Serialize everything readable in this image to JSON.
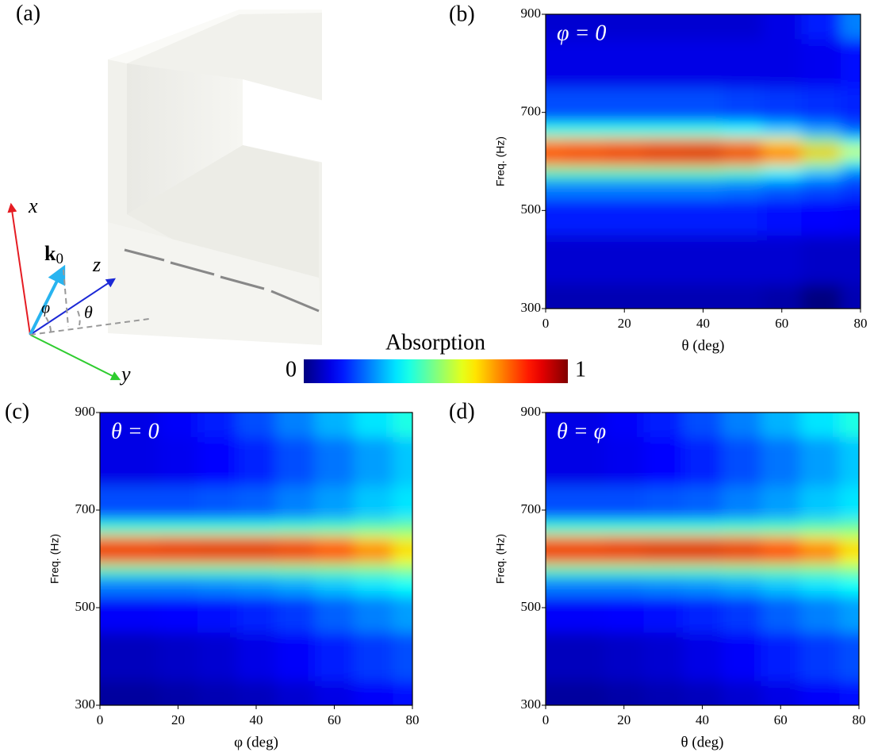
{
  "illustration": {
    "label": "(a)",
    "axis_x": "x",
    "axis_y": "y",
    "axis_z": "z",
    "wave_vector": {
      "main": "k",
      "sub": "0"
    },
    "angle_phi": "φ",
    "angle_theta": "θ"
  },
  "colorbar": {
    "title": "Absorption",
    "lim": [
      0,
      1
    ],
    "ticks": [
      0,
      1
    ]
  },
  "chart_data": [
    {
      "type": "heatmap",
      "panel_label": "(b)",
      "annotation": "φ = 0",
      "x_label": "θ (deg)",
      "y_label": "Freq. (Hz)",
      "x": [
        0,
        10,
        20,
        30,
        40,
        50,
        60,
        70,
        80
      ],
      "y": [
        300,
        400,
        500,
        550,
        580,
        600,
        620,
        640,
        660,
        700,
        800,
        900
      ],
      "z": [
        [
          0.05,
          0.05,
          0.05,
          0.05,
          0.05,
          0.05,
          0.04,
          0.0,
          0.05
        ],
        [
          0.08,
          0.08,
          0.08,
          0.08,
          0.08,
          0.08,
          0.08,
          0.07,
          0.07
        ],
        [
          0.15,
          0.15,
          0.15,
          0.15,
          0.15,
          0.15,
          0.14,
          0.13,
          0.12
        ],
        [
          0.25,
          0.25,
          0.25,
          0.25,
          0.25,
          0.24,
          0.22,
          0.2,
          0.18
        ],
        [
          0.45,
          0.45,
          0.45,
          0.45,
          0.45,
          0.43,
          0.38,
          0.32,
          0.25
        ],
        [
          0.75,
          0.76,
          0.77,
          0.78,
          0.78,
          0.75,
          0.68,
          0.55,
          0.4
        ],
        [
          0.88,
          0.89,
          0.9,
          0.92,
          0.93,
          0.9,
          0.82,
          0.7,
          0.6
        ],
        [
          0.72,
          0.73,
          0.74,
          0.75,
          0.75,
          0.72,
          0.64,
          0.52,
          0.4
        ],
        [
          0.4,
          0.4,
          0.4,
          0.4,
          0.4,
          0.38,
          0.33,
          0.28,
          0.22
        ],
        [
          0.2,
          0.2,
          0.2,
          0.2,
          0.2,
          0.19,
          0.18,
          0.17,
          0.16
        ],
        [
          0.1,
          0.1,
          0.1,
          0.1,
          0.1,
          0.1,
          0.1,
          0.11,
          0.14
        ],
        [
          0.08,
          0.08,
          0.08,
          0.08,
          0.08,
          0.08,
          0.1,
          0.15,
          0.25
        ]
      ],
      "xlim": [
        0,
        80
      ],
      "ylim": [
        300,
        900
      ],
      "xticks": [
        0,
        20,
        40,
        60,
        80
      ],
      "yticks": [
        300,
        500,
        700,
        900
      ]
    },
    {
      "type": "heatmap",
      "panel_label": "(c)",
      "annotation": "θ = 0",
      "x_label": "φ (deg)",
      "y_label": "Freq. (Hz)",
      "x": [
        0,
        10,
        20,
        30,
        40,
        50,
        60,
        70,
        80
      ],
      "y": [
        300,
        400,
        500,
        550,
        580,
        600,
        620,
        640,
        660,
        700,
        800,
        900
      ],
      "z": [
        [
          0.03,
          0.03,
          0.04,
          0.05,
          0.06,
          0.08,
          0.1,
          0.12,
          0.14
        ],
        [
          0.06,
          0.06,
          0.07,
          0.08,
          0.1,
          0.12,
          0.15,
          0.18,
          0.2
        ],
        [
          0.12,
          0.12,
          0.13,
          0.14,
          0.16,
          0.18,
          0.22,
          0.25,
          0.28
        ],
        [
          0.25,
          0.25,
          0.25,
          0.26,
          0.27,
          0.29,
          0.32,
          0.35,
          0.38
        ],
        [
          0.45,
          0.45,
          0.45,
          0.45,
          0.45,
          0.46,
          0.47,
          0.48,
          0.5
        ],
        [
          0.78,
          0.78,
          0.78,
          0.78,
          0.78,
          0.77,
          0.75,
          0.7,
          0.62
        ],
        [
          0.9,
          0.9,
          0.91,
          0.92,
          0.92,
          0.9,
          0.86,
          0.78,
          0.68
        ],
        [
          0.75,
          0.75,
          0.76,
          0.76,
          0.76,
          0.75,
          0.72,
          0.66,
          0.6
        ],
        [
          0.42,
          0.42,
          0.42,
          0.42,
          0.42,
          0.43,
          0.44,
          0.46,
          0.48
        ],
        [
          0.2,
          0.2,
          0.2,
          0.21,
          0.22,
          0.25,
          0.28,
          0.32,
          0.35
        ],
        [
          0.1,
          0.1,
          0.11,
          0.13,
          0.16,
          0.2,
          0.24,
          0.28,
          0.32
        ],
        [
          0.1,
          0.1,
          0.12,
          0.15,
          0.2,
          0.25,
          0.3,
          0.35,
          0.4
        ]
      ],
      "xlim": [
        0,
        80
      ],
      "ylim": [
        300,
        900
      ],
      "xticks": [
        0,
        20,
        40,
        60,
        80
      ],
      "yticks": [
        300,
        500,
        700,
        900
      ]
    },
    {
      "type": "heatmap",
      "panel_label": "(d)",
      "annotation": "θ = φ",
      "x_label": "θ (deg)",
      "y_label": "Freq. (Hz)",
      "x": [
        0,
        10,
        20,
        30,
        40,
        50,
        60,
        70,
        80
      ],
      "y": [
        300,
        400,
        500,
        550,
        580,
        600,
        620,
        640,
        660,
        700,
        800,
        900
      ],
      "z": [
        [
          0.03,
          0.03,
          0.04,
          0.05,
          0.06,
          0.08,
          0.1,
          0.12,
          0.14
        ],
        [
          0.06,
          0.06,
          0.07,
          0.08,
          0.1,
          0.12,
          0.15,
          0.18,
          0.2
        ],
        [
          0.12,
          0.12,
          0.13,
          0.14,
          0.16,
          0.18,
          0.22,
          0.25,
          0.28
        ],
        [
          0.25,
          0.25,
          0.25,
          0.26,
          0.27,
          0.29,
          0.32,
          0.35,
          0.38
        ],
        [
          0.45,
          0.45,
          0.45,
          0.45,
          0.45,
          0.46,
          0.47,
          0.48,
          0.5
        ],
        [
          0.78,
          0.78,
          0.78,
          0.79,
          0.79,
          0.78,
          0.76,
          0.71,
          0.62
        ],
        [
          0.9,
          0.9,
          0.91,
          0.93,
          0.93,
          0.91,
          0.87,
          0.79,
          0.68
        ],
        [
          0.75,
          0.75,
          0.76,
          0.76,
          0.76,
          0.75,
          0.72,
          0.66,
          0.6
        ],
        [
          0.42,
          0.42,
          0.42,
          0.42,
          0.42,
          0.43,
          0.44,
          0.46,
          0.48
        ],
        [
          0.2,
          0.2,
          0.2,
          0.21,
          0.22,
          0.25,
          0.28,
          0.32,
          0.35
        ],
        [
          0.1,
          0.1,
          0.11,
          0.13,
          0.16,
          0.2,
          0.24,
          0.28,
          0.32
        ],
        [
          0.1,
          0.1,
          0.12,
          0.15,
          0.2,
          0.25,
          0.3,
          0.35,
          0.4
        ]
      ],
      "xlim": [
        0,
        80
      ],
      "ylim": [
        300,
        900
      ],
      "xticks": [
        0,
        20,
        40,
        60,
        80
      ],
      "yticks": [
        300,
        500,
        700,
        900
      ]
    }
  ]
}
